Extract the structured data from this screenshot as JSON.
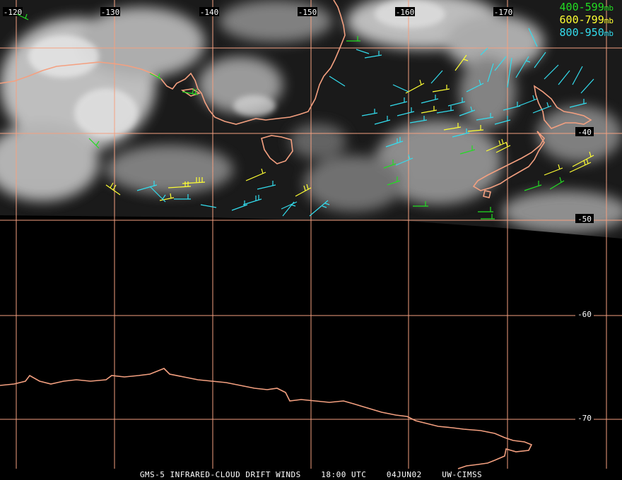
{
  "caption": {
    "product": "GMS-5 INFRARED-CLOUD DRIFT WINDS",
    "time": "18:00 UTC",
    "date": "04JUN02",
    "source": "UW-CIMSS"
  },
  "legend": [
    {
      "range": "400-599",
      "unit": "mb",
      "color": "#22dd22"
    },
    {
      "range": "600-799",
      "unit": "mb",
      "color": "#ffff33"
    },
    {
      "range": "800-950",
      "unit": "mb",
      "color": "#33ddee"
    }
  ],
  "longitude_labels": [
    "-120",
    "-130",
    "-140",
    "-150",
    "-160",
    "-170"
  ],
  "latitude_labels": [
    "-40",
    "-50",
    "-60",
    "-70"
  ],
  "colors": {
    "graticule": "#f4a080",
    "coastline": "#f4a080",
    "cloud": "#d8d8d8",
    "background": "#000000"
  },
  "icons": [
    "wind-barb-icon"
  ]
}
